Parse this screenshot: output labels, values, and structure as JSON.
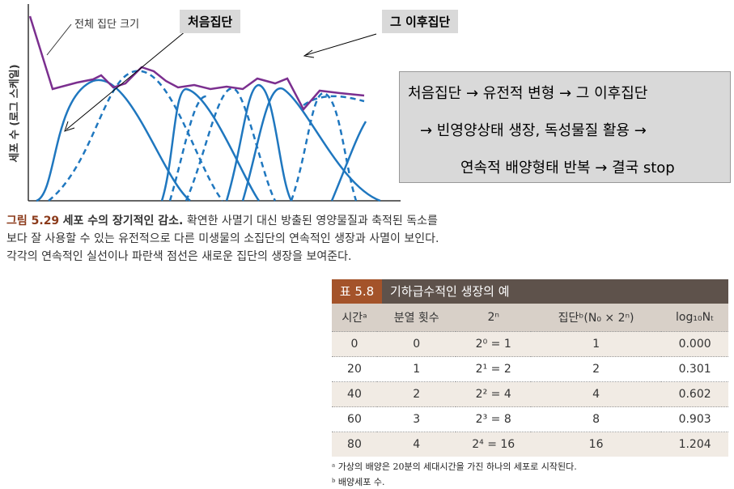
{
  "figure": {
    "y_label": "세포 수 (로그 스케일)",
    "total_label": "전체 집단 크기",
    "callout_first": "처음집단",
    "callout_later": "그 이후집단"
  },
  "summary": {
    "lines": [
      "처음집단 → 유전적 변형 → 그 이후집단",
      "→ 빈영양상태 생장, 독성물질 활용 →",
      "연속적 배양형태 반복 → 결국 stop"
    ]
  },
  "caption": {
    "number": "그림 5.29",
    "title": "세포 수의 장기적인 감소.",
    "body": "확연한 사멸기 대신 방출된 영양물질과 축적된 독소를 보다 잘 사용할 수 있는 유전적으로 다른 미생물의 소집단의 연속적인 생장과 사멸이 보인다. 각각의 연속적인 실선이나 파란색 점선은 새로운 집단의 생장을 보여준다."
  },
  "table": {
    "label": "표 5.8",
    "title": "기하급수적인 생장의 예",
    "headers": [
      "시간ᵃ",
      "분열 횟수",
      "2ⁿ",
      "집단ᵇ(N₀ × 2ⁿ)",
      "log₁₀Nₜ"
    ],
    "rows": [
      [
        "0",
        "0",
        "2⁰ = 1",
        "1",
        "0.000"
      ],
      [
        "20",
        "1",
        "2¹ = 2",
        "2",
        "0.301"
      ],
      [
        "40",
        "2",
        "2² = 4",
        "4",
        "0.602"
      ],
      [
        "60",
        "3",
        "2³ = 8",
        "8",
        "0.903"
      ],
      [
        "80",
        "4",
        "2⁴ = 16",
        "16",
        "1.204"
      ]
    ],
    "footnotes": [
      "ᵃ 가상의 배양은 20분의 세대시간을 가진 하나의 세포로 시작된다.",
      "ᵇ 배양세포 수."
    ]
  }
}
